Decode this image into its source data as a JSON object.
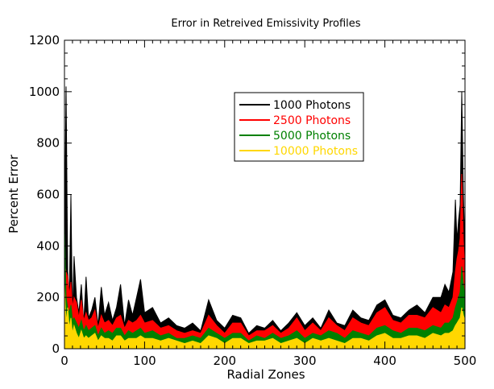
{
  "chart_data": {
    "type": "line",
    "title": "Error in Retreived Emissivity Profiles",
    "xlabel": "Radial Zones",
    "ylabel": "Percent Error",
    "xlim": [
      0,
      500
    ],
    "ylim": [
      0,
      1200
    ],
    "x_ticks": [
      0,
      100,
      200,
      300,
      400,
      500
    ],
    "y_ticks": [
      0,
      200,
      400,
      600,
      800,
      1000,
      1200
    ],
    "legend_position": "top-right",
    "grid": false,
    "series": [
      {
        "name": "1000 Photons",
        "color": "#000000",
        "x": [
          0,
          2,
          4,
          6,
          8,
          10,
          12,
          15,
          18,
          21,
          24,
          27,
          30,
          34,
          38,
          42,
          46,
          50,
          55,
          60,
          65,
          70,
          75,
          80,
          85,
          90,
          95,
          100,
          110,
          120,
          130,
          140,
          150,
          160,
          170,
          180,
          190,
          200,
          210,
          220,
          230,
          240,
          250,
          260,
          270,
          280,
          290,
          300,
          310,
          320,
          330,
          340,
          350,
          360,
          370,
          380,
          390,
          400,
          410,
          420,
          430,
          440,
          450,
          460,
          470,
          475,
          480,
          485,
          488,
          490,
          492,
          494,
          496,
          498,
          500
        ],
        "values": [
          420,
          1020,
          300,
          200,
          600,
          120,
          360,
          200,
          140,
          250,
          100,
          280,
          120,
          150,
          200,
          90,
          240,
          130,
          180,
          110,
          160,
          250,
          90,
          190,
          130,
          200,
          270,
          140,
          160,
          100,
          120,
          90,
          80,
          100,
          70,
          190,
          110,
          80,
          130,
          120,
          60,
          90,
          80,
          110,
          70,
          100,
          140,
          90,
          120,
          80,
          150,
          100,
          90,
          150,
          120,
          110,
          170,
          190,
          130,
          120,
          150,
          170,
          140,
          200,
          200,
          250,
          220,
          300,
          580,
          420,
          500,
          560,
          1000,
          600,
          380
        ]
      },
      {
        "name": "2500 Photons",
        "color": "#ff0000",
        "x": [
          0,
          2,
          4,
          6,
          8,
          10,
          12,
          15,
          18,
          21,
          24,
          27,
          30,
          34,
          38,
          42,
          46,
          50,
          55,
          60,
          65,
          70,
          75,
          80,
          85,
          90,
          95,
          100,
          110,
          120,
          130,
          140,
          150,
          160,
          170,
          180,
          190,
          200,
          210,
          220,
          230,
          240,
          250,
          260,
          270,
          280,
          290,
          300,
          310,
          320,
          330,
          340,
          350,
          360,
          370,
          380,
          390,
          400,
          410,
          420,
          430,
          440,
          450,
          460,
          470,
          475,
          480,
          485,
          488,
          490,
          492,
          494,
          496,
          498,
          500
        ],
        "values": [
          330,
          300,
          280,
          210,
          260,
          160,
          200,
          180,
          120,
          190,
          110,
          140,
          110,
          120,
          150,
          80,
          130,
          100,
          110,
          90,
          120,
          130,
          80,
          110,
          100,
          110,
          130,
          100,
          110,
          80,
          90,
          70,
          60,
          70,
          60,
          130,
          90,
          60,
          100,
          100,
          50,
          70,
          70,
          90,
          60,
          80,
          120,
          70,
          100,
          70,
          120,
          90,
          70,
          120,
          100,
          90,
          140,
          160,
          110,
          100,
          130,
          130,
          120,
          160,
          140,
          170,
          160,
          200,
          300,
          350,
          380,
          430,
          680,
          420,
          300
        ]
      },
      {
        "name": "5000 Photons",
        "color": "#008000",
        "x": [
          0,
          2,
          4,
          6,
          8,
          10,
          12,
          15,
          18,
          21,
          24,
          27,
          30,
          34,
          38,
          42,
          46,
          50,
          55,
          60,
          65,
          70,
          75,
          80,
          85,
          90,
          95,
          100,
          110,
          120,
          130,
          140,
          150,
          160,
          170,
          180,
          190,
          200,
          210,
          220,
          230,
          240,
          250,
          260,
          270,
          280,
          290,
          300,
          310,
          320,
          330,
          340,
          350,
          360,
          370,
          380,
          390,
          400,
          410,
          420,
          430,
          440,
          450,
          460,
          470,
          475,
          480,
          485,
          488,
          490,
          492,
          494,
          496,
          498,
          500
        ],
        "values": [
          480,
          200,
          160,
          140,
          170,
          110,
          120,
          100,
          80,
          110,
          70,
          90,
          70,
          80,
          90,
          50,
          80,
          60,
          70,
          60,
          80,
          80,
          50,
          70,
          60,
          70,
          80,
          60,
          70,
          50,
          60,
          40,
          40,
          50,
          40,
          80,
          60,
          40,
          60,
          60,
          30,
          50,
          40,
          60,
          40,
          50,
          70,
          40,
          60,
          50,
          70,
          60,
          40,
          70,
          60,
          50,
          80,
          90,
          70,
          60,
          80,
          80,
          70,
          90,
          80,
          100,
          100,
          120,
          160,
          180,
          200,
          220,
          320,
          250,
          200
        ]
      },
      {
        "name": "10000 Photons",
        "color": "#ffd700",
        "x": [
          0,
          2,
          4,
          6,
          8,
          10,
          12,
          15,
          18,
          21,
          24,
          27,
          30,
          34,
          38,
          42,
          46,
          50,
          55,
          60,
          65,
          70,
          75,
          80,
          85,
          90,
          95,
          100,
          110,
          120,
          130,
          140,
          150,
          160,
          170,
          180,
          190,
          200,
          210,
          220,
          230,
          240,
          250,
          260,
          270,
          280,
          290,
          300,
          310,
          320,
          330,
          340,
          350,
          360,
          370,
          380,
          390,
          400,
          410,
          420,
          430,
          440,
          450,
          460,
          470,
          475,
          480,
          485,
          488,
          490,
          492,
          494,
          496,
          498,
          500
        ],
        "values": [
          250,
          100,
          160,
          80,
          120,
          60,
          90,
          60,
          40,
          70,
          40,
          50,
          40,
          50,
          60,
          30,
          50,
          40,
          40,
          30,
          50,
          50,
          30,
          40,
          40,
          40,
          50,
          40,
          40,
          30,
          40,
          30,
          20,
          30,
          20,
          50,
          40,
          20,
          40,
          40,
          20,
          30,
          30,
          40,
          20,
          30,
          40,
          20,
          40,
          30,
          40,
          30,
          20,
          40,
          40,
          30,
          50,
          60,
          40,
          40,
          50,
          50,
          40,
          60,
          50,
          60,
          60,
          70,
          90,
          100,
          110,
          120,
          160,
          130,
          110
        ]
      }
    ]
  }
}
